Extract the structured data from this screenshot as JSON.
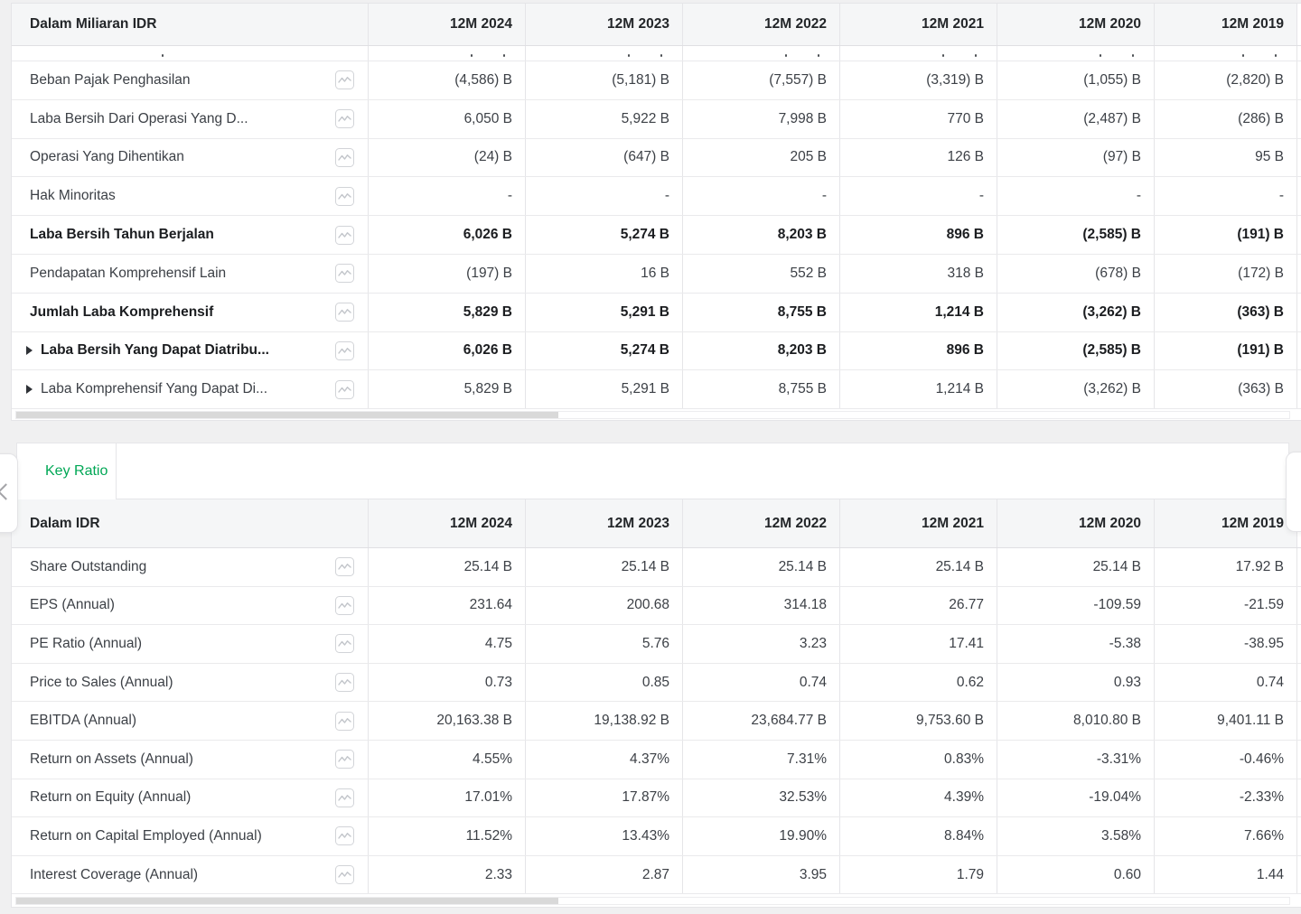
{
  "colors": {
    "accent_green": "#00a755",
    "scrollbar_thumb": "#d9d9d9",
    "header_bg": "#f5f6f7"
  },
  "icons": {
    "row_chart_icon": "sparkline-chart",
    "expand_caret": "triangle-right",
    "tabs_scroll_left": "chevron-left",
    "tabs_scroll_right": "chevron-right"
  },
  "financial_table": {
    "unit_label": "Dalam Miliaran IDR",
    "columns": [
      "12M 2024",
      "12M 2023",
      "12M 2022",
      "12M 2021",
      "12M 2020",
      "12M 2019"
    ],
    "rows": [
      {
        "label": "Beban Pajak Penghasilan",
        "bold": false,
        "expandable": false,
        "values": [
          "(4,586) B",
          "(5,181) B",
          "(7,557) B",
          "(3,319) B",
          "(1,055) B",
          "(2,820) B"
        ]
      },
      {
        "label": "Laba Bersih Dari Operasi Yang D...",
        "bold": false,
        "expandable": false,
        "values": [
          "6,050 B",
          "5,922 B",
          "7,998 B",
          "770 B",
          "(2,487) B",
          "(286) B"
        ]
      },
      {
        "label": "Operasi Yang Dihentikan",
        "bold": false,
        "expandable": false,
        "values": [
          "(24) B",
          "(647) B",
          "205 B",
          "126 B",
          "(97) B",
          "95 B"
        ]
      },
      {
        "label": "Hak Minoritas",
        "bold": false,
        "expandable": false,
        "values": [
          "-",
          "-",
          "-",
          "-",
          "-",
          "-"
        ]
      },
      {
        "label": "Laba Bersih Tahun Berjalan",
        "bold": true,
        "expandable": false,
        "values": [
          "6,026 B",
          "5,274 B",
          "8,203 B",
          "896 B",
          "(2,585) B",
          "(191) B"
        ]
      },
      {
        "label": "Pendapatan Komprehensif Lain",
        "bold": false,
        "expandable": false,
        "values": [
          "(197) B",
          "16 B",
          "552 B",
          "318 B",
          "(678) B",
          "(172) B"
        ]
      },
      {
        "label": "Jumlah Laba Komprehensif",
        "bold": true,
        "expandable": false,
        "values": [
          "5,829 B",
          "5,291 B",
          "8,755 B",
          "1,214 B",
          "(3,262) B",
          "(363) B"
        ]
      },
      {
        "label": "Laba Bersih Yang Dapat Diatribu...",
        "bold": true,
        "expandable": true,
        "values": [
          "6,026 B",
          "5,274 B",
          "8,203 B",
          "896 B",
          "(2,585) B",
          "(191) B"
        ]
      },
      {
        "label": "Laba Komprehensif Yang Dapat Di...",
        "bold": false,
        "expandable": true,
        "values": [
          "5,829 B",
          "5,291 B",
          "8,755 B",
          "1,214 B",
          "(3,262) B",
          "(363) B"
        ]
      }
    ]
  },
  "key_ratio": {
    "tab_label": "Key Ratio",
    "unit_label": "Dalam IDR",
    "columns": [
      "12M 2024",
      "12M 2023",
      "12M 2022",
      "12M 2021",
      "12M 2020",
      "12M 2019"
    ],
    "rows": [
      {
        "label": "Share Outstanding",
        "bold": false,
        "expandable": false,
        "values": [
          "25.14 B",
          "25.14 B",
          "25.14 B",
          "25.14 B",
          "25.14 B",
          "17.92 B"
        ]
      },
      {
        "label": "EPS (Annual)",
        "bold": false,
        "expandable": false,
        "values": [
          "231.64",
          "200.68",
          "314.18",
          "26.77",
          "-109.59",
          "-21.59"
        ]
      },
      {
        "label": "PE Ratio (Annual)",
        "bold": false,
        "expandable": false,
        "values": [
          "4.75",
          "5.76",
          "3.23",
          "17.41",
          "-5.38",
          "-38.95"
        ]
      },
      {
        "label": "Price to Sales (Annual)",
        "bold": false,
        "expandable": false,
        "values": [
          "0.73",
          "0.85",
          "0.74",
          "0.62",
          "0.93",
          "0.74"
        ]
      },
      {
        "label": "EBITDA (Annual)",
        "bold": false,
        "expandable": false,
        "values": [
          "20,163.38 B",
          "19,138.92 B",
          "23,684.77 B",
          "9,753.60 B",
          "8,010.80 B",
          "9,401.11 B"
        ]
      },
      {
        "label": "Return on Assets (Annual)",
        "bold": false,
        "expandable": false,
        "values": [
          "4.55%",
          "4.37%",
          "7.31%",
          "0.83%",
          "-3.31%",
          "-0.46%"
        ]
      },
      {
        "label": "Return on Equity (Annual)",
        "bold": false,
        "expandable": false,
        "values": [
          "17.01%",
          "17.87%",
          "32.53%",
          "4.39%",
          "-19.04%",
          "-2.33%"
        ]
      },
      {
        "label": "Return on Capital Employed (Annual)",
        "bold": false,
        "expandable": false,
        "values": [
          "11.52%",
          "13.43%",
          "19.90%",
          "8.84%",
          "3.58%",
          "7.66%"
        ]
      },
      {
        "label": "Interest Coverage (Annual)",
        "bold": false,
        "expandable": false,
        "values": [
          "2.33",
          "2.87",
          "3.95",
          "1.79",
          "0.60",
          "1.44"
        ]
      }
    ]
  }
}
